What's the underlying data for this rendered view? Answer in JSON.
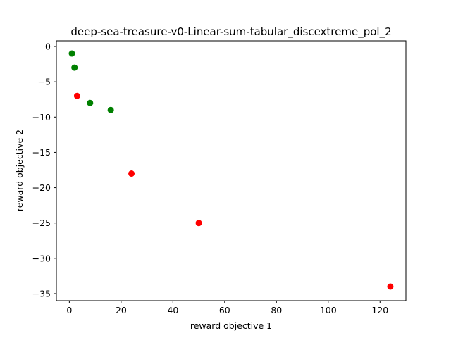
{
  "chart_data": {
    "type": "scatter",
    "title": "deep-sea-treasure-v0-Linear-sum-tabular_discextreme_pol_2",
    "xlabel": "reward objective 1",
    "ylabel": "reward objective 2",
    "xlim": [
      -5,
      130
    ],
    "ylim": [
      -36,
      0.8
    ],
    "xticks": [
      0,
      20,
      40,
      60,
      80,
      100,
      120
    ],
    "yticks": [
      0,
      -5,
      -10,
      -15,
      -20,
      -25,
      -30,
      -35
    ],
    "xtick_labels": [
      "0",
      "20",
      "40",
      "60",
      "80",
      "100",
      "120"
    ],
    "ytick_labels": [
      "0",
      "−5",
      "−10",
      "−15",
      "−20",
      "−25",
      "−30",
      "−35"
    ],
    "grid": false,
    "legend": "none",
    "series": [
      {
        "color": "#008000",
        "points": [
          {
            "x": 1,
            "y": -1
          },
          {
            "x": 2,
            "y": -3
          },
          {
            "x": 8,
            "y": -8
          },
          {
            "x": 16,
            "y": -9
          }
        ]
      },
      {
        "color": "#ff0000",
        "points": [
          {
            "x": 3,
            "y": -7
          },
          {
            "x": 24,
            "y": -18
          },
          {
            "x": 50,
            "y": -25
          },
          {
            "x": 124,
            "y": -34
          }
        ]
      }
    ]
  }
}
